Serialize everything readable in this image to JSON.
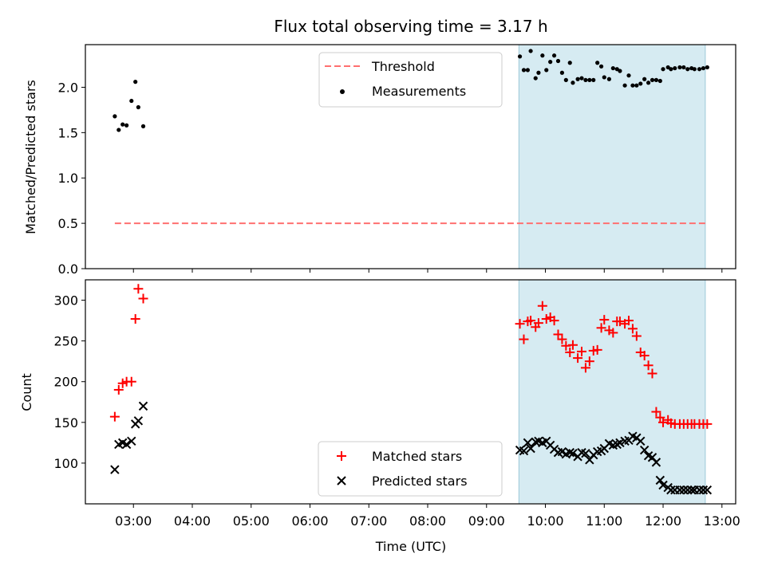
{
  "chart_data": [
    {
      "type": "scatter",
      "title": "Flux total observing time = 3.17 h",
      "ylabel": "Matched/Predicted stars",
      "xlabel": "",
      "xlim": [
        "02:11",
        "13:14"
      ],
      "ylim": [
        0,
        2.47
      ],
      "yticks": [
        0.0,
        0.5,
        1.0,
        1.5,
        2.0
      ],
      "ytick_labels": [
        "0.0",
        "0.5",
        "1.0",
        "1.5",
        "2.0"
      ],
      "shaded_span": [
        "09:33",
        "12:43"
      ],
      "legend": {
        "position": "top-center",
        "entries": [
          "Threshold",
          "Measurements"
        ]
      },
      "threshold": {
        "name": "Threshold",
        "value": 0.5,
        "x_range": [
          "02:41",
          "12:43"
        ],
        "color": "#ff7070",
        "style": "dashed"
      },
      "series": [
        {
          "name": "Measurements",
          "color": "#000000",
          "x": [
            "02:41",
            "02:45",
            "02:49",
            "02:53",
            "02:58",
            "03:02",
            "03:05",
            "03:10",
            "09:34",
            "09:38",
            "09:42",
            "09:45",
            "09:50",
            "09:53",
            "09:57",
            "10:01",
            "10:05",
            "10:09",
            "10:13",
            "10:17",
            "10:21",
            "10:25",
            "10:28",
            "10:33",
            "10:37",
            "10:41",
            "10:45",
            "10:49",
            "10:53",
            "10:57",
            "11:00",
            "11:05",
            "11:09",
            "11:13",
            "11:16",
            "11:21",
            "11:25",
            "11:29",
            "11:33",
            "11:37",
            "11:41",
            "11:45",
            "11:49",
            "11:53",
            "11:57",
            "12:00",
            "12:05",
            "12:08",
            "12:12",
            "12:17",
            "12:21",
            "12:25",
            "12:29",
            "12:32",
            "12:37",
            "12:41",
            "12:45"
          ],
          "y": [
            1.68,
            1.53,
            1.59,
            1.58,
            1.85,
            2.06,
            1.78,
            1.57,
            2.34,
            2.19,
            2.19,
            2.4,
            2.1,
            2.16,
            2.35,
            2.19,
            2.28,
            2.35,
            2.29,
            2.16,
            2.08,
            2.27,
            2.05,
            2.09,
            2.1,
            2.08,
            2.08,
            2.08,
            2.27,
            2.23,
            2.11,
            2.09,
            2.21,
            2.2,
            2.18,
            2.02,
            2.13,
            2.02,
            2.02,
            2.04,
            2.09,
            2.05,
            2.08,
            2.08,
            2.07,
            2.2,
            2.22,
            2.2,
            2.21,
            2.22,
            2.22,
            2.2,
            2.21,
            2.2,
            2.2,
            2.21,
            2.22
          ]
        }
      ]
    },
    {
      "type": "scatter",
      "title": "",
      "ylabel": "Count",
      "xlabel": "Time (UTC)",
      "xlim": [
        "02:11",
        "13:14"
      ],
      "ylim": [
        50,
        325
      ],
      "xticks": [
        "03:00",
        "04:00",
        "05:00",
        "06:00",
        "07:00",
        "08:00",
        "09:00",
        "10:00",
        "11:00",
        "12:00",
        "13:00"
      ],
      "yticks": [
        100,
        150,
        200,
        250,
        300
      ],
      "ytick_labels": [
        "100",
        "150",
        "200",
        "250",
        "300"
      ],
      "shaded_span": [
        "09:33",
        "12:43"
      ],
      "legend": {
        "position": "lower-center",
        "entries": [
          "Matched stars",
          "Predicted stars"
        ]
      },
      "series": [
        {
          "name": "Matched stars",
          "marker": "+",
          "color": "#ff0000",
          "x": [
            "02:41",
            "02:45",
            "02:49",
            "02:53",
            "02:58",
            "03:02",
            "03:05",
            "03:10",
            "09:34",
            "09:38",
            "09:42",
            "09:45",
            "09:50",
            "09:53",
            "09:57",
            "10:01",
            "10:05",
            "10:09",
            "10:13",
            "10:17",
            "10:21",
            "10:25",
            "10:28",
            "10:33",
            "10:37",
            "10:41",
            "10:45",
            "10:49",
            "10:53",
            "10:57",
            "11:00",
            "11:05",
            "11:09",
            "11:13",
            "11:16",
            "11:21",
            "11:25",
            "11:29",
            "11:33",
            "11:37",
            "11:41",
            "11:45",
            "11:49",
            "11:53",
            "11:57",
            "12:00",
            "12:05",
            "12:08",
            "12:12",
            "12:17",
            "12:21",
            "12:25",
            "12:29",
            "12:32",
            "12:37",
            "12:41",
            "12:45"
          ],
          "y": [
            157,
            190,
            198,
            200,
            200,
            277,
            314,
            302,
            271,
            252,
            274,
            275,
            267,
            272,
            293,
            277,
            279,
            275,
            258,
            252,
            244,
            236,
            245,
            229,
            237,
            217,
            225,
            238,
            239,
            266,
            276,
            263,
            260,
            274,
            274,
            271,
            275,
            265,
            256,
            236,
            232,
            220,
            210,
            163,
            156,
            150,
            153,
            149,
            148,
            148,
            148,
            148,
            148,
            148,
            148,
            148,
            148
          ]
        },
        {
          "name": "Predicted stars",
          "marker": "x",
          "color": "#000000",
          "x": [
            "02:41",
            "02:45",
            "02:49",
            "02:53",
            "02:58",
            "03:02",
            "03:05",
            "03:10",
            "09:34",
            "09:38",
            "09:42",
            "09:45",
            "09:50",
            "09:53",
            "09:57",
            "10:01",
            "10:05",
            "10:09",
            "10:13",
            "10:17",
            "10:21",
            "10:25",
            "10:28",
            "10:33",
            "10:37",
            "10:41",
            "10:45",
            "10:49",
            "10:53",
            "10:57",
            "11:00",
            "11:05",
            "11:09",
            "11:13",
            "11:16",
            "11:21",
            "11:25",
            "11:29",
            "11:33",
            "11:37",
            "11:41",
            "11:45",
            "11:49",
            "11:53",
            "11:57",
            "12:00",
            "12:05",
            "12:08",
            "12:12",
            "12:17",
            "12:21",
            "12:25",
            "12:29",
            "12:32",
            "12:37",
            "12:41",
            "12:45"
          ],
          "y": [
            92,
            123,
            125,
            123,
            127,
            148,
            152,
            170,
            116,
            115,
            125,
            118,
            126,
            127,
            125,
            127,
            122,
            117,
            113,
            114,
            111,
            113,
            112,
            108,
            113,
            112,
            104,
            110,
            114,
            115,
            118,
            124,
            122,
            123,
            125,
            127,
            128,
            133,
            131,
            127,
            116,
            109,
            107,
            101,
            79,
            73,
            70,
            67,
            67,
            67,
            67,
            67,
            67,
            67,
            67,
            67,
            67
          ]
        }
      ]
    }
  ]
}
